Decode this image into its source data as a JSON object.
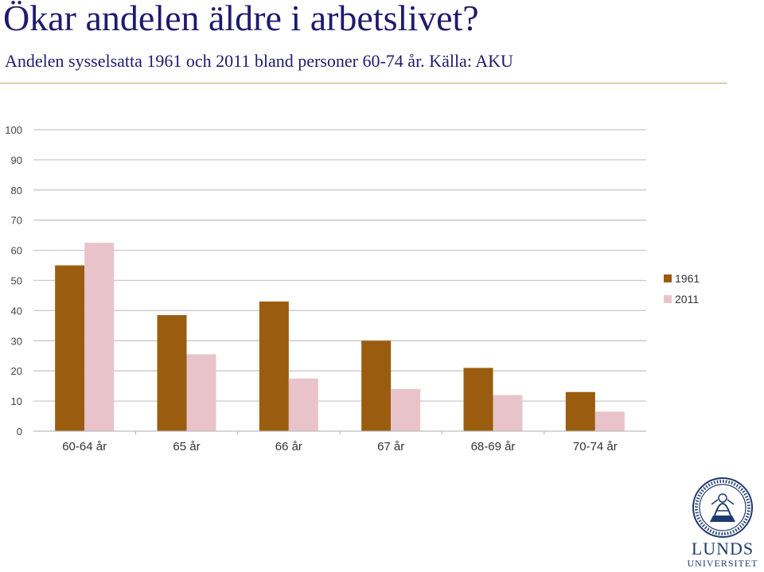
{
  "slide": {
    "title": "Ökar andelen äldre i arbetslivet?",
    "subtitle": "Andelen sysselsatta 1961 och 2011 bland personer 60-74 år. Källa: AKU"
  },
  "colors": {
    "title": "#1f1a6e",
    "rule": "#bfa66b",
    "series_1961": "#9a5c0f",
    "series_2011": "#e8c4ca",
    "gridline": "#c8c8c8",
    "logo": "#1f3a6e"
  },
  "logo": {
    "name": "Lunds universitet seal",
    "wordmark_line1": "LUNDS",
    "wordmark_line2": "UNIVERSITET"
  },
  "chart_data": {
    "type": "bar",
    "title": "",
    "xlabel": "",
    "ylabel": "",
    "categories": [
      "60-64 år",
      "65 år",
      "66 år",
      "67 år",
      "68-69 år",
      "70-74 år"
    ],
    "series": [
      {
        "name": "1961",
        "values": [
          55,
          38.5,
          43,
          30,
          21,
          13
        ]
      },
      {
        "name": "2011",
        "values": [
          62.5,
          25.5,
          17.5,
          14,
          12,
          6.5
        ]
      }
    ],
    "ylim": [
      0,
      100
    ],
    "yticks": [
      0,
      10,
      20,
      30,
      40,
      50,
      60,
      70,
      80,
      90,
      100
    ],
    "grid": true,
    "legend": "right"
  }
}
